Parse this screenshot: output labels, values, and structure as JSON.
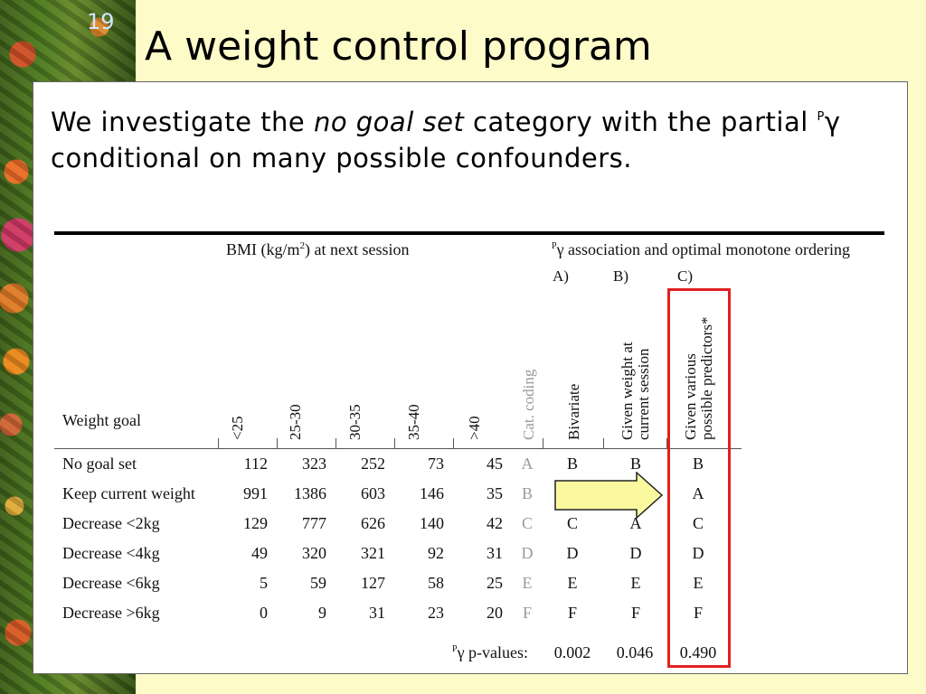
{
  "slide": {
    "number": "19",
    "title": "A weight control program",
    "intro": {
      "pre": "We investigate the ",
      "emphasis": "no goal set",
      "mid": " category with the partial ",
      "gamma_sup": "P",
      "gamma": "γ",
      "post": " conditional on many possible confounders."
    }
  },
  "table": {
    "bmi_header": "BMI (kg/m",
    "bmi_header_sup": "2",
    "bmi_header_end": ") at next session",
    "assoc_sup": "P",
    "assoc_header": "γ association and optimal monotone ordering",
    "column_letters": [
      "A)",
      "B)",
      "C)"
    ],
    "row_header": "Weight goal",
    "bmi_columns": [
      "<25",
      "25-30",
      "30-35",
      "35-40",
      ">40"
    ],
    "cat_coding_header": "Cat. coding",
    "assoc_columns": [
      "Bivariate",
      "Given weight at\ncurrent session",
      "Given various\npossible predictors*"
    ],
    "rows": [
      {
        "label": "No goal set",
        "values": [
          "112",
          "323",
          "252",
          "73",
          "45"
        ],
        "cat": "A",
        "a": "B",
        "b": "B",
        "c": "B"
      },
      {
        "label": "Keep current weight",
        "values": [
          "991",
          "1386",
          "603",
          "146",
          "35"
        ],
        "cat": "B",
        "a": "",
        "b": "",
        "c": "A"
      },
      {
        "label": "Decrease <2kg",
        "values": [
          "129",
          "777",
          "626",
          "140",
          "42"
        ],
        "cat": "C",
        "a": "C",
        "b": "A",
        "c": "C"
      },
      {
        "label": "Decrease <4kg",
        "values": [
          "49",
          "320",
          "321",
          "92",
          "31"
        ],
        "cat": "D",
        "a": "D",
        "b": "D",
        "c": "D"
      },
      {
        "label": "Decrease <6kg",
        "values": [
          "5",
          "59",
          "127",
          "58",
          "25"
        ],
        "cat": "E",
        "a": "E",
        "b": "E",
        "c": "E"
      },
      {
        "label": "Decrease >6kg",
        "values": [
          "0",
          "9",
          "31",
          "23",
          "20"
        ],
        "cat": "F",
        "a": "F",
        "b": "F",
        "c": "F"
      }
    ],
    "pvalue_label_sup": "P",
    "pvalue_label": "γ p-values:",
    "pvalues": [
      "0.002",
      "0.046",
      "0.490"
    ]
  },
  "colors": {
    "background": "#fdfbc8",
    "highlight_box": "#e02020",
    "arrow_fill": "#fbf9a0",
    "grey_text": "#9a9a9a"
  }
}
